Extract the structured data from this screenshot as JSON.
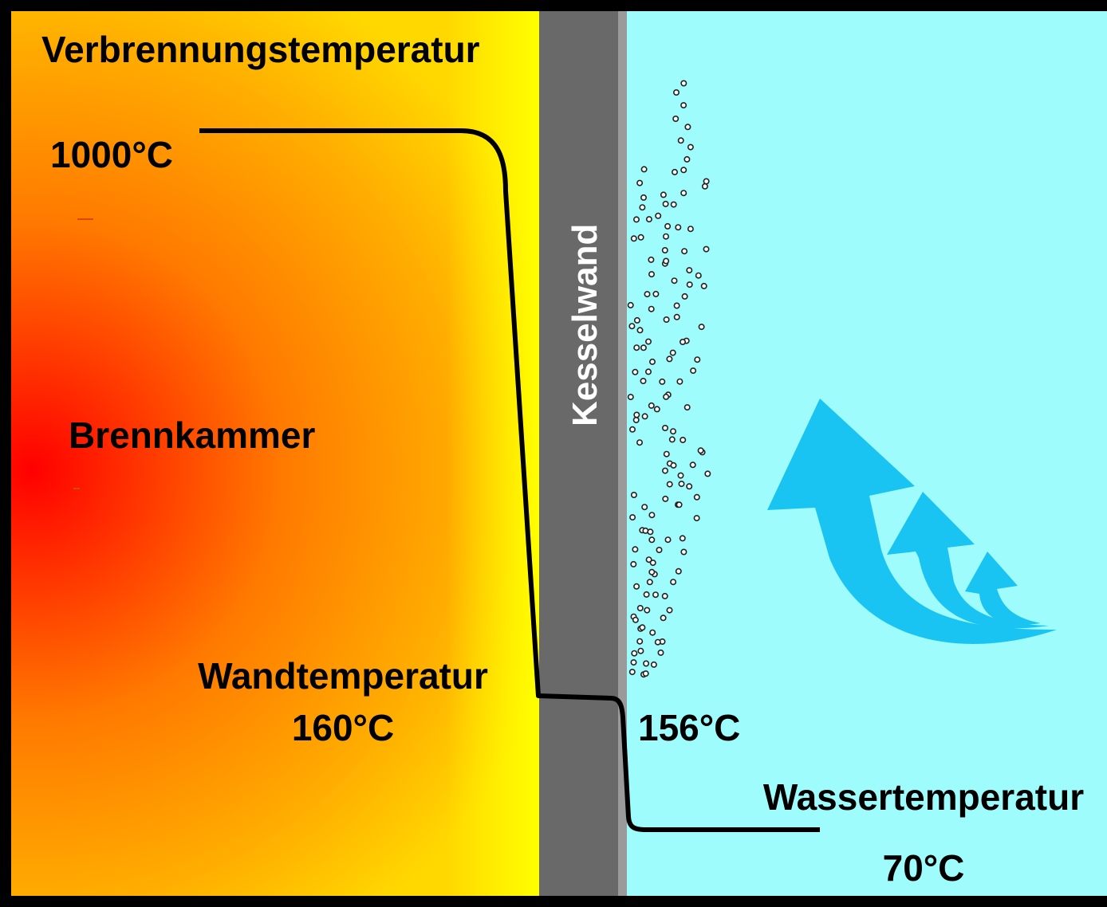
{
  "labels": {
    "combustion_temp_title": "Verbrennungstemperatur",
    "combustion_temp_value": "1000°C",
    "chamber": "Brennkammer",
    "wall": "Kesselwand",
    "wall_temp_title": "Wandtemperatur",
    "wall_temp_value": "160°C",
    "wall_water_side_value": "156°C",
    "water_temp_title": "Wassertemperatur",
    "water_temp_value": "70°C"
  },
  "colors": {
    "chamber_hot": "#ff0000",
    "chamber_mid": "#ff9a00",
    "chamber_edge": "#ffff00",
    "wall": "#696969",
    "wall_edge": "#9a9a9a",
    "water": "#9ffcfc",
    "arrows": "#19c4f2",
    "temperature_line": "#000000"
  }
}
